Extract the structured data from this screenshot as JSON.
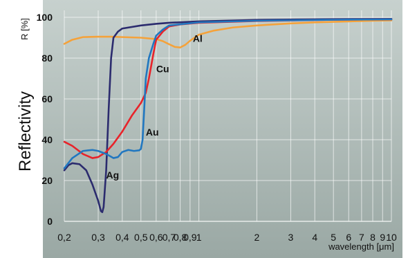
{
  "chart_data": {
    "type": "line",
    "ylabel": "Reflectivity",
    "ylabel_unit": "R [%]",
    "xlabel": "wavelength [μm]",
    "x_scale": "log",
    "xlim": [
      0.2,
      10
    ],
    "ylim": [
      0,
      100
    ],
    "grid": true,
    "x_ticks": [
      {
        "v": 0.2,
        "label": "0,2"
      },
      {
        "v": 0.3,
        "label": "0,3"
      },
      {
        "v": 0.4,
        "label": "0,4"
      },
      {
        "v": 0.5,
        "label": "0,5"
      },
      {
        "v": 0.6,
        "label": "0,6"
      },
      {
        "v": 0.7,
        "label": "0,7"
      },
      {
        "v": 0.8,
        "label": "0,8"
      },
      {
        "v": 0.9,
        "label": "0,9"
      },
      {
        "v": 1,
        "label": "1"
      },
      {
        "v": 2,
        "label": "2"
      },
      {
        "v": 3,
        "label": "3"
      },
      {
        "v": 4,
        "label": "4"
      },
      {
        "v": 5,
        "label": "5"
      },
      {
        "v": 6,
        "label": "6"
      },
      {
        "v": 7,
        "label": "7"
      },
      {
        "v": 8,
        "label": "8"
      },
      {
        "v": 9,
        "label": "9"
      },
      {
        "v": 10,
        "label": "10"
      }
    ],
    "y_ticks": [
      {
        "v": 0,
        "label": "0"
      },
      {
        "v": 20,
        "label": "20"
      },
      {
        "v": 40,
        "label": "40"
      },
      {
        "v": 60,
        "label": "60"
      },
      {
        "v": 80,
        "label": "80"
      },
      {
        "v": 100,
        "label": "100"
      }
    ],
    "series": [
      {
        "name": "Al",
        "color": "#f5a23a",
        "label_at": {
          "x": 0.93,
          "y": 88
        },
        "points": [
          [
            0.2,
            87
          ],
          [
            0.22,
            89
          ],
          [
            0.25,
            90.3
          ],
          [
            0.3,
            90.5
          ],
          [
            0.35,
            90.5
          ],
          [
            0.4,
            90.3
          ],
          [
            0.5,
            90
          ],
          [
            0.6,
            89.3
          ],
          [
            0.65,
            88.3
          ],
          [
            0.7,
            86.8
          ],
          [
            0.75,
            85.5
          ],
          [
            0.8,
            85.2
          ],
          [
            0.85,
            86.5
          ],
          [
            0.9,
            88.5
          ],
          [
            1,
            91.5
          ],
          [
            1.2,
            93.5
          ],
          [
            1.5,
            95
          ],
          [
            2,
            96
          ],
          [
            3,
            97
          ],
          [
            4,
            97.5
          ],
          [
            6,
            98
          ],
          [
            8,
            98.3
          ],
          [
            10,
            98.5
          ]
        ]
      },
      {
        "name": "Ag",
        "color": "#2b2b6e",
        "label_at": {
          "x": 0.33,
          "y": 21
        },
        "points": [
          [
            0.2,
            25
          ],
          [
            0.21,
            27.5
          ],
          [
            0.22,
            28.5
          ],
          [
            0.24,
            28
          ],
          [
            0.26,
            25
          ],
          [
            0.28,
            18
          ],
          [
            0.3,
            10
          ],
          [
            0.31,
            5
          ],
          [
            0.315,
            4.5
          ],
          [
            0.32,
            7
          ],
          [
            0.33,
            25
          ],
          [
            0.34,
            55
          ],
          [
            0.35,
            80
          ],
          [
            0.36,
            90
          ],
          [
            0.38,
            93
          ],
          [
            0.4,
            94.5
          ],
          [
            0.5,
            96
          ],
          [
            0.6,
            96.8
          ],
          [
            0.7,
            97.3
          ],
          [
            1,
            98
          ],
          [
            2,
            98.7
          ],
          [
            5,
            99.1
          ],
          [
            10,
            99.2
          ]
        ]
      },
      {
        "name": "Cu",
        "color": "#e8232a",
        "label_at": {
          "x": 0.6,
          "y": 73
        },
        "points": [
          [
            0.2,
            39
          ],
          [
            0.22,
            37
          ],
          [
            0.25,
            33
          ],
          [
            0.28,
            31
          ],
          [
            0.3,
            31.5
          ],
          [
            0.33,
            34
          ],
          [
            0.36,
            38
          ],
          [
            0.4,
            44
          ],
          [
            0.45,
            52
          ],
          [
            0.5,
            58
          ],
          [
            0.53,
            63
          ],
          [
            0.55,
            70
          ],
          [
            0.58,
            82
          ],
          [
            0.6,
            89
          ],
          [
            0.65,
            93
          ],
          [
            0.7,
            95.5
          ],
          [
            0.8,
            96.5
          ],
          [
            1,
            97.3
          ],
          [
            2,
            98.2
          ],
          [
            5,
            98.8
          ],
          [
            10,
            99
          ]
        ]
      },
      {
        "name": "Au",
        "color": "#2177c0",
        "label_at": {
          "x": 0.53,
          "y": 42
        },
        "points": [
          [
            0.2,
            26
          ],
          [
            0.22,
            31
          ],
          [
            0.25,
            34.5
          ],
          [
            0.28,
            35
          ],
          [
            0.3,
            34.5
          ],
          [
            0.33,
            33
          ],
          [
            0.36,
            31
          ],
          [
            0.38,
            31.5
          ],
          [
            0.4,
            34
          ],
          [
            0.43,
            35
          ],
          [
            0.46,
            34.5
          ],
          [
            0.49,
            34.8
          ],
          [
            0.5,
            35.5
          ],
          [
            0.51,
            40
          ],
          [
            0.52,
            55
          ],
          [
            0.53,
            70
          ],
          [
            0.55,
            80
          ],
          [
            0.58,
            87
          ],
          [
            0.6,
            91
          ],
          [
            0.65,
            94
          ],
          [
            0.7,
            96
          ],
          [
            1,
            97.5
          ],
          [
            2,
            98.3
          ],
          [
            5,
            98.8
          ],
          [
            10,
            99
          ]
        ]
      }
    ]
  }
}
